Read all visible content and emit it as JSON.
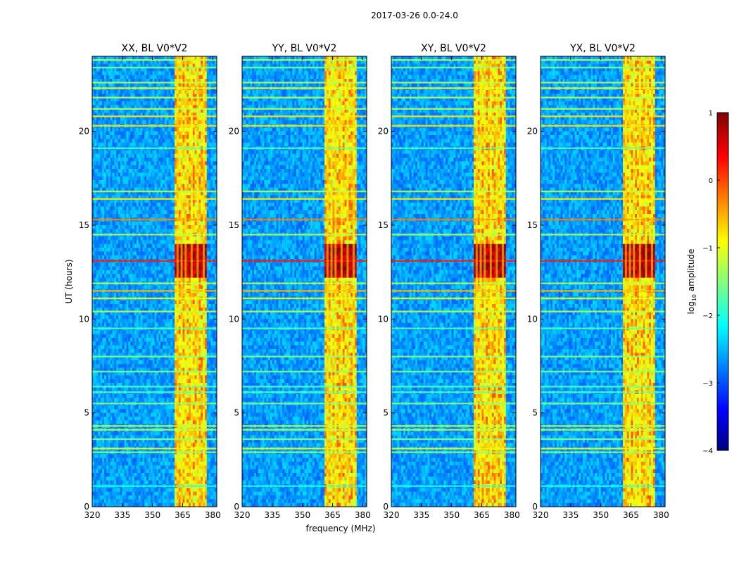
{
  "chart_data": {
    "type": "heatmap",
    "title": "2017-03-26 0.0-24.0",
    "xlabel": "frequency (MHz)",
    "ylabel": "UT (hours)",
    "xlim": [
      320,
      382
    ],
    "ylim": [
      0,
      24
    ],
    "xticks": [
      "320",
      "335",
      "350",
      "365",
      "380"
    ],
    "yticks": [
      "0",
      "5",
      "10",
      "15",
      "20"
    ],
    "panels": [
      {
        "title": "XX, BL V0*V2",
        "strong_band_mhz": [
          361,
          377
        ],
        "peak_ut": [
          12.2,
          14.0
        ]
      },
      {
        "title": "YY, BL V0*V2",
        "strong_band_mhz": [
          361,
          377
        ],
        "peak_ut": [
          12.2,
          14.0
        ]
      },
      {
        "title": "XY, BL V0*V2",
        "strong_band_mhz": [
          361,
          377
        ],
        "peak_ut": [
          12.2,
          14.0
        ]
      },
      {
        "title": "YX, BL V0*V2",
        "strong_band_mhz": [
          361,
          377
        ],
        "peak_ut": [
          12.2,
          14.0
        ]
      }
    ],
    "colorbar": {
      "label": "log10 amplitude",
      "label_main": "log",
      "label_sub": "10",
      "label_rest": " amplitude",
      "colormap": "jet",
      "range": [
        -4,
        1
      ],
      "ticks": [
        "1",
        "0",
        "−1",
        "−2",
        "−3",
        "−4"
      ]
    },
    "horizontal_bands_ut": [
      {
        "ut": 1.1,
        "level": 0.4
      },
      {
        "ut": 2.9,
        "level": 0.5
      },
      {
        "ut": 3.1,
        "level": 0.6
      },
      {
        "ut": 3.6,
        "level": 0.5
      },
      {
        "ut": 4.1,
        "level": 0.55
      },
      {
        "ut": 4.3,
        "level": 0.55
      },
      {
        "ut": 5.5,
        "level": 0.5
      },
      {
        "ut": 6.1,
        "level": 0.45
      },
      {
        "ut": 6.4,
        "level": 0.45
      },
      {
        "ut": 7.2,
        "level": 0.5
      },
      {
        "ut": 8.0,
        "level": 0.5
      },
      {
        "ut": 9.5,
        "level": 0.45
      },
      {
        "ut": 10.4,
        "level": 0.55
      },
      {
        "ut": 11.1,
        "level": 0.6
      },
      {
        "ut": 11.5,
        "level": 0.7
      },
      {
        "ut": 11.9,
        "level": 0.55
      },
      {
        "ut": 13.1,
        "level": 0.85
      },
      {
        "ut": 14.5,
        "level": 0.55
      },
      {
        "ut": 15.3,
        "level": 0.75
      },
      {
        "ut": 16.4,
        "level": 0.65
      },
      {
        "ut": 16.8,
        "level": 0.55
      },
      {
        "ut": 19.1,
        "level": 0.45
      },
      {
        "ut": 20.3,
        "level": 0.65
      },
      {
        "ut": 20.8,
        "level": 0.65
      },
      {
        "ut": 21.2,
        "level": 0.55
      },
      {
        "ut": 21.8,
        "level": 0.55
      },
      {
        "ut": 22.3,
        "level": 0.6
      },
      {
        "ut": 22.6,
        "level": 0.55
      },
      {
        "ut": 23.4,
        "level": 0.5
      },
      {
        "ut": 23.8,
        "level": 0.55
      }
    ],
    "vertical_bands_mhz": [
      {
        "f": 362.5,
        "level": 0.65
      },
      {
        "f": 364.5,
        "level": 0.6
      },
      {
        "f": 366.5,
        "level": 0.6
      },
      {
        "f": 369.5,
        "level": 0.62
      },
      {
        "f": 372.5,
        "level": 0.6
      },
      {
        "f": 375.5,
        "level": 0.6
      }
    ]
  }
}
